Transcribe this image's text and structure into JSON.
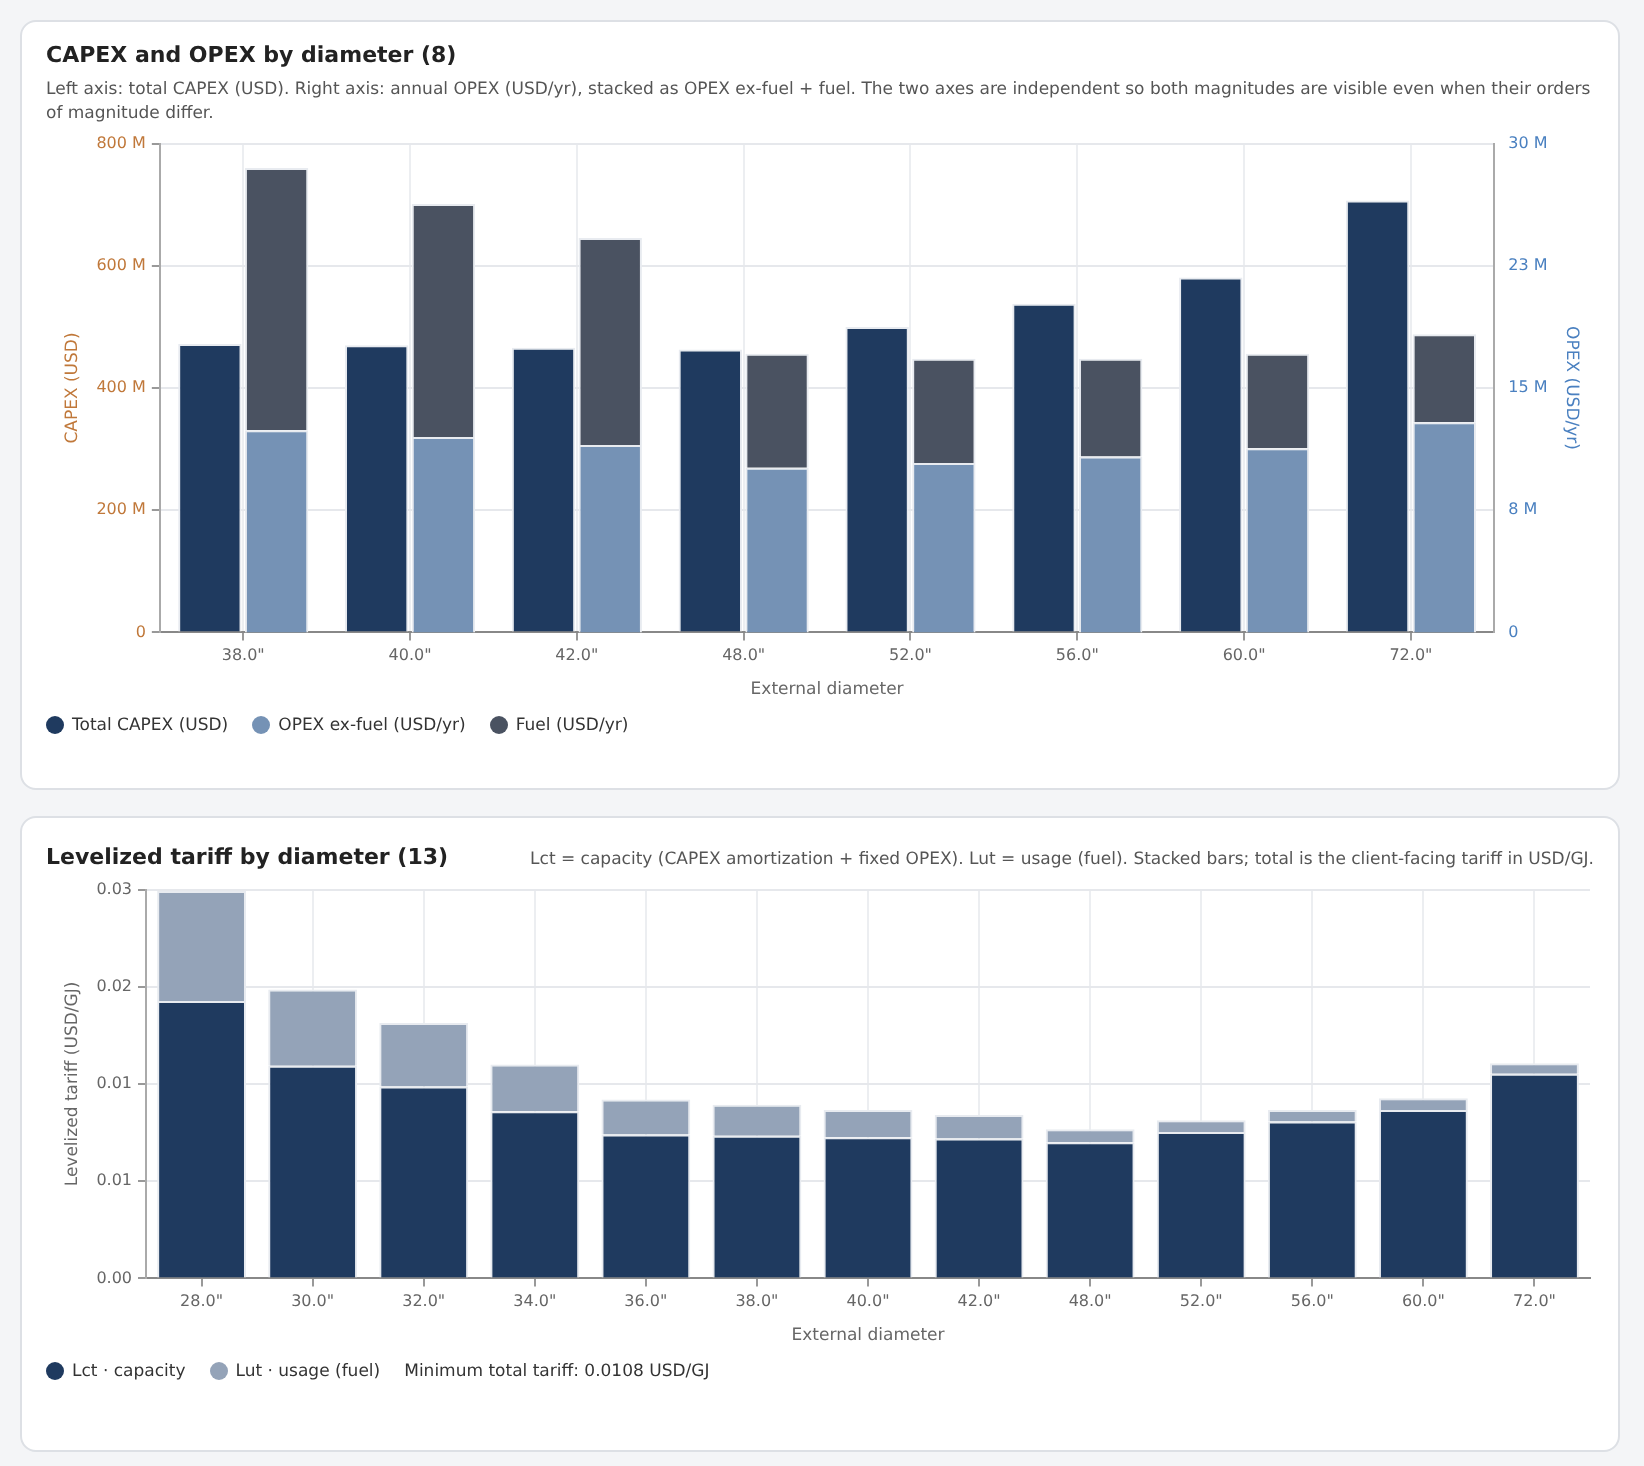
{
  "chart_data": [
    {
      "type": "bar",
      "title": "CAPEX and OPEX by diameter (8)",
      "subtitle": "Left axis: total CAPEX (USD). Right axis: annual OPEX (USD/yr), stacked as OPEX ex-fuel + fuel. The two axes are independent so both magnitudes are visible even when their orders of magnitude differ.",
      "xlabel": "External diameter",
      "ylabel": "CAPEX (USD)",
      "y2label": "OPEX (USD/yr)",
      "categories": [
        "38.0\"",
        "40.0\"",
        "42.0\"",
        "48.0\"",
        "52.0\"",
        "56.0\"",
        "60.0\"",
        "72.0\""
      ],
      "series": [
        {
          "name": "Total CAPEX (USD)",
          "color": "#1f3a5f",
          "values": [
            472000000,
            470000000,
            466000000,
            463000000,
            500000000,
            538000000,
            581000000,
            707000000
          ]
        },
        {
          "name": "OPEX ex-fuel (USD/yr)",
          "color": "#7592b5",
          "axis": "y2",
          "values": [
            12400000,
            12000000,
            11500000,
            10100000,
            10400000,
            10800000,
            11300000,
            12900000
          ]
        },
        {
          "name": "Fuel (USD/yr)",
          "color": "#4a5261",
          "axis": "y2",
          "values": [
            16100000,
            14300000,
            12700000,
            7000000,
            6400000,
            6000000,
            5800000,
            5400000
          ]
        }
      ],
      "stacked": true,
      "ylim": [
        0,
        800000000
      ],
      "yticks": [
        0,
        {
          "value": 200000000,
          "label": "200 M"
        },
        {
          "value": 400000000,
          "label": "400 M"
        },
        {
          "value": 600000000,
          "label": "600 M"
        },
        {
          "value": 800000000,
          "label": "800 M"
        }
      ],
      "y2lim": [
        0,
        30000000
      ],
      "y2ticks": [
        0,
        {
          "value": 7500000,
          "label": "8 M"
        },
        {
          "value": 15000000,
          "label": "15 M"
        },
        {
          "value": 22500000,
          "label": "23 M"
        },
        {
          "value": 30000000,
          "label": "30 M"
        }
      ],
      "grid": true,
      "legend": "bottom left"
    },
    {
      "type": "bar",
      "title": "Levelized tariff by diameter (13)",
      "subtitle": "Lct = capacity (CAPEX amortization + fixed OPEX). Lut = usage (fuel). Stacked bars; total is the client-facing tariff in USD/GJ.",
      "xlabel": "External diameter",
      "ylabel": "Levelized tariff (USD/GJ)",
      "categories": [
        "28.0\"",
        "30.0\"",
        "32.0\"",
        "34.0\"",
        "36.0\"",
        "38.0\"",
        "40.0\"",
        "42.0\"",
        "48.0\"",
        "52.0\"",
        "56.0\"",
        "60.0\"",
        "72.0\""
      ],
      "series": [
        {
          "name": "Lct · capacity",
          "color": "#1f3a5f",
          "values": [
            0.0214,
            0.0164,
            0.0148,
            0.0129,
            0.0111,
            0.011,
            0.0109,
            0.0108,
            0.0105,
            0.0113,
            0.0121,
            0.013,
            0.0158
          ]
        },
        {
          "name": "Lut · usage (fuel)",
          "color": "#94a3b8",
          "values": [
            0.0085,
            0.0059,
            0.0049,
            0.0036,
            0.0027,
            0.0024,
            0.0021,
            0.0018,
            0.001,
            0.0009,
            0.0009,
            0.0009,
            0.0008
          ]
        }
      ],
      "stacked": true,
      "ylim": [
        0,
        0.03
      ],
      "yticks": [
        {
          "value": 0,
          "label": "0.00"
        },
        {
          "value": 0.0075,
          "label": "0.01"
        },
        {
          "value": 0.015,
          "label": "0.01"
        },
        {
          "value": 0.0225,
          "label": "0.02"
        },
        0.03
      ],
      "grid": true,
      "legend": "bottom left",
      "annotations": [
        "Minimum total tariff: 0.0108 USD/GJ"
      ]
    }
  ]
}
